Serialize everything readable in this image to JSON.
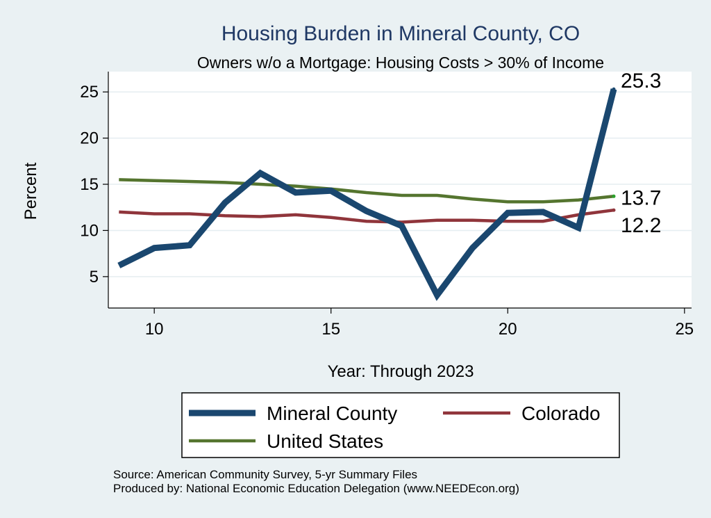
{
  "chart_data": {
    "type": "line",
    "title": "Housing Burden in Mineral County, CO",
    "subtitle": "Owners w/o a Mortgage: Housing Costs > 30% of Income",
    "xlabel": "Year: Through 2023",
    "ylabel": "Percent",
    "xlim": [
      8.7,
      25.2
    ],
    "ylim": [
      1.6,
      27.2
    ],
    "xticks": [
      10,
      15,
      20,
      25
    ],
    "yticks": [
      5,
      10,
      15,
      20,
      25
    ],
    "grid": true,
    "legend_position": "bottom",
    "x": [
      9,
      10,
      11,
      12,
      13,
      14,
      15,
      16,
      17,
      18,
      19,
      20,
      21,
      22,
      23
    ],
    "series": [
      {
        "name": "Mineral County",
        "color": "#1a476f",
        "values": [
          6.2,
          8.1,
          8.4,
          13.0,
          16.2,
          14.1,
          14.3,
          12.1,
          10.5,
          3.0,
          8.1,
          11.9,
          12.0,
          10.3,
          25.3
        ],
        "end_label": "25.3"
      },
      {
        "name": "Colorado",
        "color": "#90353b",
        "values": [
          12.0,
          11.8,
          11.8,
          11.6,
          11.5,
          11.7,
          11.4,
          11.0,
          10.9,
          11.1,
          11.1,
          11.0,
          11.0,
          11.7,
          12.2
        ],
        "end_label": "12.2"
      },
      {
        "name": "United States",
        "color": "#55752f",
        "values": [
          15.5,
          15.4,
          15.3,
          15.2,
          15.0,
          14.8,
          14.5,
          14.1,
          13.8,
          13.8,
          13.4,
          13.1,
          13.1,
          13.3,
          13.7
        ],
        "end_label": "13.7"
      }
    ]
  },
  "footer": {
    "source": "Source: American Community Survey, 5-yr Summary Files",
    "produced": "Produced by: National Economic Education Delegation (www.NEEDEcon.org)"
  }
}
